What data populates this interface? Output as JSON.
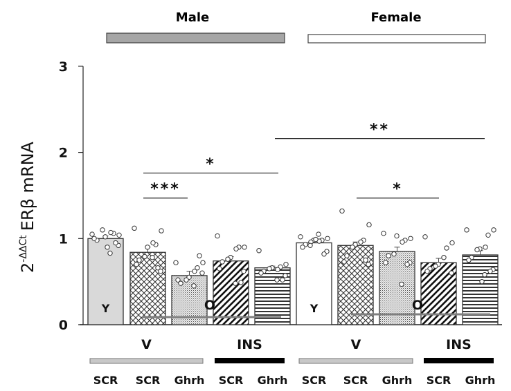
{
  "chart_data": {
    "type": "bar",
    "title": "",
    "ylabel": "2-ΔΔCt ERβ mRNA",
    "ylabel_base": "2",
    "ylabel_superscript": "-ΔΔCt",
    "ylabel_main": "ERβ mRNA",
    "ylim": [
      0,
      3
    ],
    "yticks": [
      0,
      1,
      2,
      3
    ],
    "ytick_labels": [
      "0",
      "1",
      "2",
      "3"
    ],
    "groups": [
      {
        "label": "Male",
        "bar_fill": "#a6a6a6"
      },
      {
        "label": "Female",
        "bar_fill": "#ffffff"
      }
    ],
    "treatments": [
      {
        "label": "V",
        "bar_fill": "#c8c8c8"
      },
      {
        "label": "INS",
        "bar_fill": "#000000"
      },
      {
        "label": "V",
        "bar_fill": "#c8c8c8"
      },
      {
        "label": "INS",
        "bar_fill": "#000000"
      }
    ],
    "categories": [
      "SCR",
      "SCR",
      "Ghrh",
      "SCR",
      "Ghrh",
      "SCR",
      "SCR",
      "Ghrh",
      "SCR",
      "Ghrh"
    ],
    "bars": [
      {
        "sex": "Male",
        "treatment": "V",
        "age": "Y",
        "sirna": "SCR",
        "value": 1.0,
        "sem": 0.03,
        "pattern": "solid-lightgray",
        "points": [
          1.05,
          1.04,
          1.06,
          1.07,
          1.02,
          1.1,
          0.98,
          1.0,
          0.92,
          0.95,
          0.83,
          0.9
        ]
      },
      {
        "sex": "Male",
        "treatment": "V",
        "age": "O",
        "sirna": "SCR",
        "value": 0.84,
        "sem": 0.06,
        "pattern": "crosshatch",
        "points": [
          1.12,
          1.09,
          0.93,
          0.95,
          0.9,
          0.79,
          0.75,
          0.7,
          0.62,
          0.66,
          0.78
        ]
      },
      {
        "sex": "Male",
        "treatment": "V",
        "age": "O",
        "sirna": "Ghrh",
        "value": 0.57,
        "sem": 0.05,
        "pattern": "dots",
        "points": [
          0.72,
          0.72,
          0.66,
          0.62,
          0.55,
          0.52,
          0.48,
          0.52,
          0.6,
          0.8,
          0.45
        ]
      },
      {
        "sex": "Male",
        "treatment": "INS",
        "age": "O",
        "sirna": "SCR",
        "value": 0.74,
        "sem": 0.05,
        "pattern": "diagonal",
        "points": [
          1.03,
          0.9,
          0.9,
          0.88,
          0.78,
          0.76,
          0.73,
          0.65,
          0.62,
          0.49,
          0.48
        ]
      },
      {
        "sex": "Male",
        "treatment": "INS",
        "age": "O",
        "sirna": "Ghrh",
        "value": 0.66,
        "sem": 0.02,
        "pattern": "horizontal",
        "points": [
          0.86,
          0.7,
          0.67,
          0.64,
          0.66,
          0.65,
          0.62,
          0.6,
          0.57,
          0.52,
          0.52
        ]
      },
      {
        "sex": "Female",
        "treatment": "V",
        "age": "Y",
        "sirna": "SCR",
        "value": 0.95,
        "sem": 0.02,
        "pattern": "white",
        "points": [
          1.02,
          1.0,
          0.98,
          0.97,
          0.98,
          0.96,
          0.93,
          0.9,
          0.85,
          0.82,
          1.05,
          0.99,
          0.92
        ]
      },
      {
        "sex": "Female",
        "treatment": "V",
        "age": "O",
        "sirna": "SCR",
        "value": 0.92,
        "sem": 0.04,
        "pattern": "crosshatch",
        "points": [
          1.32,
          1.16,
          0.98,
          0.96,
          0.93,
          0.9,
          0.8,
          0.73,
          0.7,
          0.75,
          0.72
        ]
      },
      {
        "sex": "Female",
        "treatment": "V",
        "age": "O",
        "sirna": "Ghrh",
        "value": 0.85,
        "sem": 0.05,
        "pattern": "dots",
        "points": [
          1.06,
          1.0,
          0.98,
          0.96,
          1.03,
          0.82,
          0.8,
          0.72,
          0.72,
          0.7,
          0.47
        ]
      },
      {
        "sex": "Female",
        "treatment": "INS",
        "age": "O",
        "sirna": "SCR",
        "value": 0.72,
        "sem": 0.05,
        "pattern": "diagonal",
        "points": [
          1.02,
          0.95,
          0.89,
          0.78,
          0.7,
          0.68,
          0.65,
          0.62,
          0.6
        ]
      },
      {
        "sex": "Female",
        "treatment": "INS",
        "age": "O",
        "sirna": "Ghrh",
        "value": 0.81,
        "sem": 0.05,
        "pattern": "horizontal",
        "points": [
          1.1,
          1.1,
          1.04,
          0.9,
          0.88,
          0.87,
          0.78,
          0.75,
          0.64,
          0.62,
          0.58,
          0.5
        ]
      }
    ],
    "annotations": [
      {
        "type": "age-label",
        "text": "Y",
        "bar": 0
      },
      {
        "type": "age-label",
        "text": "O",
        "bar": 3
      },
      {
        "type": "age-label",
        "text": "Y",
        "bar": 5
      },
      {
        "type": "age-label",
        "text": "O",
        "bar": 8
      }
    ],
    "significance": [
      {
        "from_bar": 1,
        "to_bar": 2,
        "label": "***",
        "y": 1.47
      },
      {
        "from_bar": 1,
        "to_bar": 4,
        "label": "*",
        "y": 1.76
      },
      {
        "from_bar": 4,
        "to_bar": 9,
        "label": "**",
        "y": 2.16
      },
      {
        "from_bar": 6,
        "to_bar": 8,
        "label": "*",
        "y": 1.47
      }
    ],
    "grid": false,
    "legend": "none"
  }
}
